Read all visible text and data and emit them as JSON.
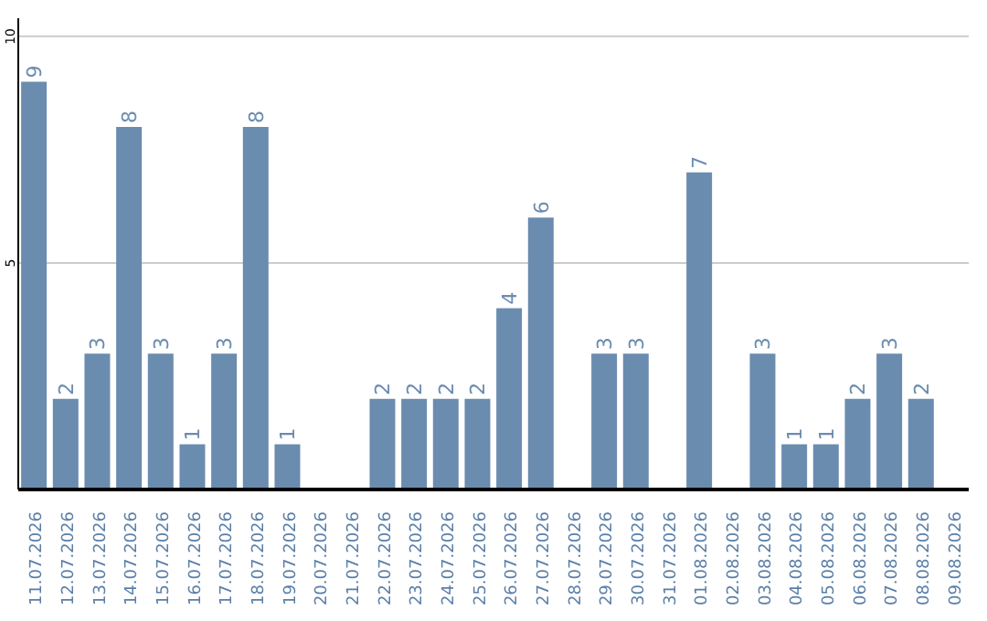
{
  "chart_data": {
    "type": "bar",
    "categories": [
      "11.07.2026",
      "12.07.2026",
      "13.07.2026",
      "14.07.2026",
      "15.07.2026",
      "16.07.2026",
      "17.07.2026",
      "18.07.2026",
      "19.07.2026",
      "20.07.2026",
      "21.07.2026",
      "22.07.2026",
      "23.07.2026",
      "24.07.2026",
      "25.07.2026",
      "26.07.2026",
      "27.07.2026",
      "28.07.2026",
      "29.07.2026",
      "30.07.2026",
      "31.07.2026",
      "01.08.2026",
      "02.08.2026",
      "03.08.2026",
      "04.08.2026",
      "05.08.2026",
      "06.08.2026",
      "07.08.2026",
      "08.08.2026",
      "09.08.2026"
    ],
    "values": [
      9,
      2,
      3,
      8,
      3,
      1,
      3,
      8,
      1,
      null,
      null,
      2,
      2,
      2,
      2,
      4,
      6,
      null,
      3,
      3,
      null,
      7,
      null,
      3,
      1,
      1,
      2,
      3,
      2,
      null
    ],
    "color": "#6a8caf",
    "ylim": [
      0,
      10.4
    ],
    "yticks": [
      5,
      10
    ],
    "grid": "y",
    "data_labels": true,
    "legend": false
  }
}
